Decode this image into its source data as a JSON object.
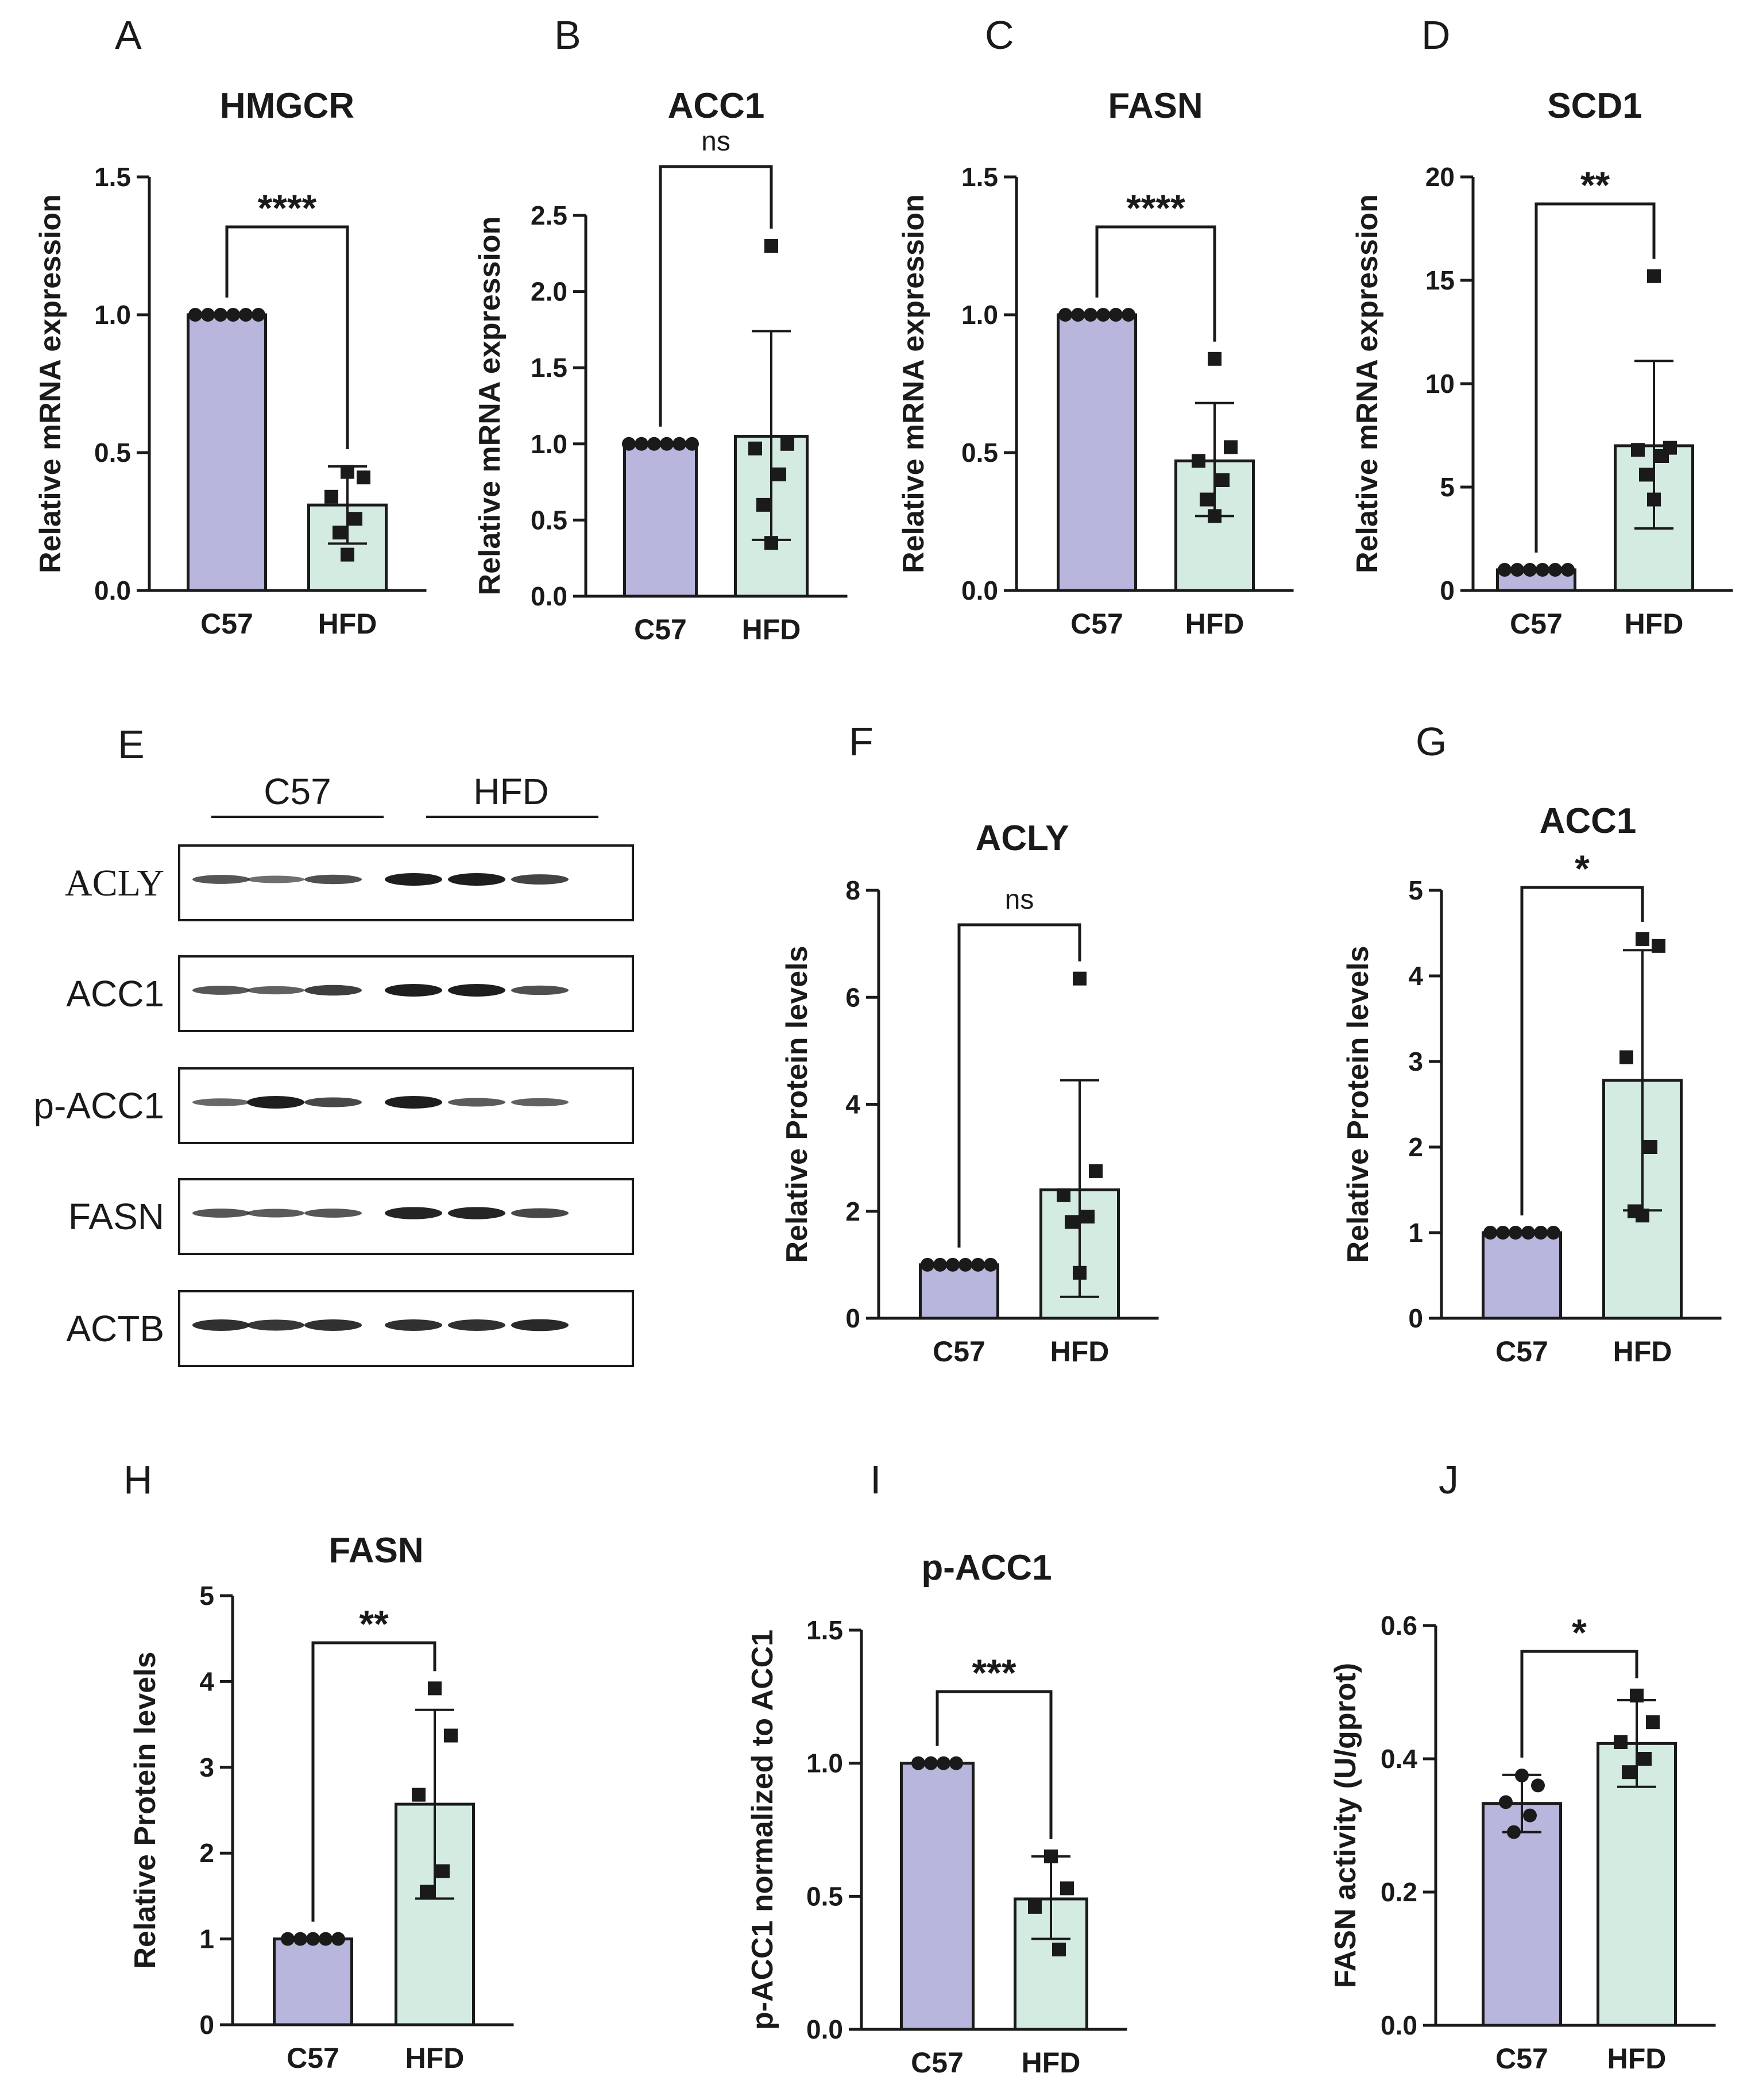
{
  "colors": {
    "c57": "#b8b6dc",
    "hfd": "#d3ebe1",
    "ink": "#1a1a1a",
    "band": "#1e1e1e"
  },
  "chart_data": [
    {
      "letter": "A",
      "title": "HMGCR",
      "type": "bar",
      "ylabel": "Relative mRNA expression",
      "ylim": [
        0,
        1.5
      ],
      "ticks": [
        "0.0",
        "0.5",
        "1.0",
        "1.5"
      ],
      "tickValues": [
        0,
        0.5,
        1.0,
        1.5
      ],
      "categories": [
        "C57",
        "HFD"
      ],
      "means": [
        1.0,
        0.31
      ],
      "errorLow": [
        1.0,
        0.17
      ],
      "errorHigh": [
        1.0,
        0.45
      ],
      "points": [
        [
          1,
          1,
          1,
          1,
          1,
          1
        ],
        [
          0.43,
          0.41,
          0.34,
          0.26,
          0.21,
          0.13
        ]
      ],
      "significance": "****"
    },
    {
      "letter": "B",
      "title": "ACC1",
      "type": "bar",
      "ylabel": "Relative mRNA expression",
      "ylim": [
        0,
        2.5
      ],
      "ticks": [
        "0.0",
        "0.5",
        "1.0",
        "1.5",
        "2.0",
        "2.5"
      ],
      "tickValues": [
        0,
        0.5,
        1.0,
        1.5,
        2.0,
        2.5
      ],
      "categories": [
        "C57",
        "HFD"
      ],
      "means": [
        1.0,
        1.05
      ],
      "errorLow": [
        1.0,
        0.37
      ],
      "errorHigh": [
        1.0,
        1.74
      ],
      "points": [
        [
          1,
          1,
          1,
          1,
          1,
          1
        ],
        [
          2.3,
          1.0,
          0.97,
          0.8,
          0.6,
          0.35
        ]
      ],
      "significance": "ns"
    },
    {
      "letter": "C",
      "title": "FASN",
      "type": "bar",
      "ylabel": "Relative mRNA expression",
      "ylim": [
        0,
        1.5
      ],
      "ticks": [
        "0.0",
        "0.5",
        "1.0",
        "1.5"
      ],
      "tickValues": [
        0,
        0.5,
        1.0,
        1.5
      ],
      "categories": [
        "C57",
        "HFD"
      ],
      "means": [
        1.0,
        0.47
      ],
      "errorLow": [
        1.0,
        0.27
      ],
      "errorHigh": [
        1.0,
        0.68
      ],
      "points": [
        [
          1,
          1,
          1,
          1,
          1,
          1
        ],
        [
          0.84,
          0.52,
          0.47,
          0.4,
          0.33,
          0.27
        ]
      ],
      "significance": "****"
    },
    {
      "letter": "D",
      "title": "SCD1",
      "type": "bar",
      "ylabel": "Relative mRNA expression",
      "ylim": [
        0,
        20
      ],
      "ticks": [
        "0",
        "5",
        "10",
        "15",
        "20"
      ],
      "tickValues": [
        0,
        5,
        10,
        15,
        20
      ],
      "categories": [
        "C57",
        "HFD"
      ],
      "means": [
        1.0,
        7.0
      ],
      "errorLow": [
        1.0,
        3.0
      ],
      "errorHigh": [
        1.0,
        11.1
      ],
      "points": [
        [
          1,
          1,
          1,
          1,
          1,
          1
        ],
        [
          15.2,
          6.9,
          6.8,
          6.5,
          5.6,
          4.4
        ]
      ],
      "significance": "**"
    },
    {
      "letter": "F",
      "title": "ACLY",
      "type": "bar",
      "ylabel": "Relative Protein levels",
      "ylim": [
        0,
        8
      ],
      "ticks": [
        "0",
        "2",
        "4",
        "6",
        "8"
      ],
      "tickValues": [
        0,
        2,
        4,
        6,
        8
      ],
      "categories": [
        "C57",
        "HFD"
      ],
      "means": [
        1.0,
        2.4
      ],
      "errorLow": [
        1.0,
        0.4
      ],
      "errorHigh": [
        1.0,
        4.45
      ],
      "points": [
        [
          1,
          1,
          1,
          1,
          1,
          1
        ],
        [
          6.35,
          2.75,
          2.3,
          1.9,
          1.8,
          0.85
        ]
      ],
      "significance": "ns"
    },
    {
      "letter": "G",
      "title": "ACC1",
      "type": "bar",
      "ylabel": "Relative Protein levels",
      "ylim": [
        0,
        5
      ],
      "ticks": [
        "0",
        "1",
        "2",
        "3",
        "4",
        "5"
      ],
      "tickValues": [
        0,
        1,
        2,
        3,
        4,
        5
      ],
      "categories": [
        "C57",
        "HFD"
      ],
      "means": [
        1.0,
        2.78
      ],
      "errorLow": [
        1.0,
        1.26
      ],
      "errorHigh": [
        1.0,
        4.3
      ],
      "points": [
        [
          1,
          1,
          1,
          1,
          1,
          1
        ],
        [
          4.43,
          4.35,
          3.05,
          2.0,
          1.25,
          1.2
        ]
      ],
      "significance": "*"
    },
    {
      "letter": "H",
      "title": "FASN",
      "type": "bar",
      "ylabel": "Relative Protein levels",
      "ylim": [
        0,
        5
      ],
      "ticks": [
        "0",
        "1",
        "2",
        "3",
        "4",
        "5"
      ],
      "tickValues": [
        0,
        1,
        2,
        3,
        4,
        5
      ],
      "categories": [
        "C57",
        "HFD"
      ],
      "means": [
        1.0,
        2.57
      ],
      "errorLow": [
        1.0,
        1.47
      ],
      "errorHigh": [
        1.0,
        3.67
      ],
      "points": [
        [
          1,
          1,
          1,
          1,
          1
        ],
        [
          3.92,
          3.37,
          2.68,
          1.79,
          1.55
        ]
      ],
      "significance": "**"
    },
    {
      "letter": "I",
      "title": "p-ACC1",
      "type": "bar",
      "ylabel": "p-ACC1 normalized to ACC1",
      "ylim": [
        0,
        1.5
      ],
      "ticks": [
        "0.0",
        "0.5",
        "1.0",
        "1.5"
      ],
      "tickValues": [
        0,
        0.5,
        1.0,
        1.5
      ],
      "categories": [
        "C57",
        "HFD"
      ],
      "means": [
        1.0,
        0.49
      ],
      "errorLow": [
        1.0,
        0.34
      ],
      "errorHigh": [
        1.0,
        0.65
      ],
      "points": [
        [
          1,
          1,
          1,
          1
        ],
        [
          0.65,
          0.53,
          0.46,
          0.3
        ]
      ],
      "significance": "***"
    },
    {
      "letter": "J",
      "title": "",
      "type": "bar",
      "ylabel": "FASN activity (U/gprot)",
      "ylim": [
        0,
        0.6
      ],
      "ticks": [
        "0.0",
        "0.2",
        "0.4",
        "0.6"
      ],
      "tickValues": [
        0,
        0.2,
        0.4,
        0.6
      ],
      "categories": [
        "C57",
        "HFD"
      ],
      "means": [
        0.333,
        0.423
      ],
      "errorLow": [
        0.29,
        0.358
      ],
      "errorHigh": [
        0.376,
        0.488
      ],
      "points": [
        [
          0.375,
          0.36,
          0.335,
          0.315,
          0.29
        ],
        [
          0.495,
          0.455,
          0.425,
          0.4,
          0.38
        ]
      ],
      "significance": "*"
    }
  ],
  "blot": {
    "letter": "E",
    "groups": [
      "C57",
      "HFD"
    ],
    "rows": [
      {
        "label": "ACLY",
        "intensity": [
          0.55,
          0.35,
          0.6,
          1.0,
          1.0,
          0.7
        ]
      },
      {
        "label": "ACC1",
        "intensity": [
          0.55,
          0.45,
          0.75,
          1.0,
          1.0,
          0.6
        ]
      },
      {
        "label": "p-ACC1",
        "intensity": [
          0.4,
          1.0,
          0.65,
          1.0,
          0.5,
          0.45
        ]
      },
      {
        "label": "FASN",
        "intensity": [
          0.55,
          0.5,
          0.55,
          0.95,
          0.95,
          0.65
        ]
      },
      {
        "label": "ACTB",
        "intensity": [
          0.85,
          0.8,
          0.85,
          0.85,
          0.85,
          0.9
        ]
      }
    ]
  }
}
